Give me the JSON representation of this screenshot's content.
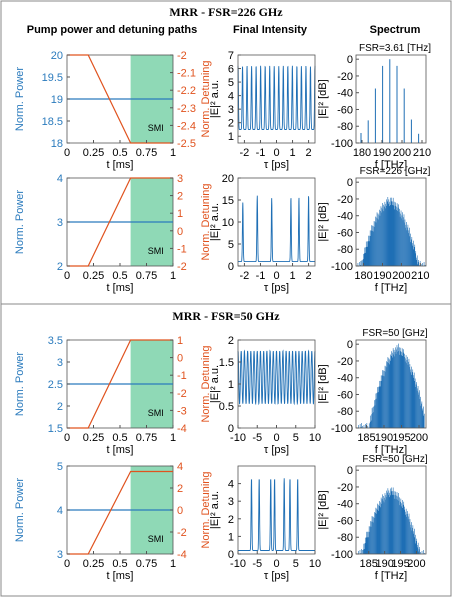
{
  "colors": {
    "power": "#2b7bbd",
    "detuning": "#e0531f",
    "smi_fill": "#8fd9b6",
    "intensity": "#1f6fb5",
    "spectrum": "#1f6fb5",
    "frame": "#555555"
  },
  "section_titles": [
    "MRR - FSR=226 GHz",
    "MRR - FSR=50 GHz"
  ],
  "column_titles": {
    "pump": "Pump power and detuning paths",
    "intensity": "Final Intensity",
    "spectrum": "Spectrum"
  },
  "labels": {
    "power_axis": "Norm. Power",
    "detuning_axis": "Norm. Detuning",
    "time_axis": "t [ms]",
    "intensity_axis": "|E|² a.u.",
    "tau_axis": "τ [ps]",
    "spectrum_axis": "|E|² [dB]",
    "freq_axis": "f [THz]",
    "smi": "SMI"
  },
  "chart_data": [
    {
      "type": "line",
      "panel": "row1-pump",
      "x_ticks": [
        0.25,
        0.5,
        0.75,
        1
      ],
      "xlim": [
        0,
        1
      ],
      "power_ylim": [
        18,
        20
      ],
      "power_ticks": [
        18,
        18.5,
        19,
        19.5,
        20
      ],
      "power_level": 19,
      "detuning_ylim": [
        -2.5,
        -2
      ],
      "detuning_ticks": [
        -2,
        -2.1,
        -2.2,
        -2.3,
        -2.4,
        -2.5
      ],
      "detuning_x": [
        0,
        0.2,
        0.6,
        1
      ],
      "detuning_y": [
        -2,
        -2,
        -2.5,
        -2.5
      ],
      "smi_region": [
        0.6,
        1
      ],
      "detuning_descending": true
    },
    {
      "type": "line",
      "panel": "row2-pump",
      "x_ticks": [
        0.25,
        0.5,
        0.75,
        1
      ],
      "xlim": [
        0,
        1
      ],
      "power_ylim": [
        2,
        4
      ],
      "power_ticks": [
        2,
        3,
        4
      ],
      "power_level": 3,
      "detuning_ylim": [
        -2,
        3
      ],
      "detuning_ticks": [
        3,
        2,
        1,
        0,
        -1,
        -2
      ],
      "detuning_x": [
        0,
        0.2,
        0.6,
        1
      ],
      "detuning_y": [
        -2,
        -2,
        3,
        3
      ],
      "smi_region": [
        0.6,
        1
      ]
    },
    {
      "type": "line",
      "panel": "row3-pump",
      "x_ticks": [
        0.25,
        0.5,
        0.75,
        1
      ],
      "xlim": [
        0,
        1
      ],
      "power_ylim": [
        1.5,
        3.5
      ],
      "power_ticks": [
        1.5,
        2,
        2.5,
        3,
        3.5
      ],
      "power_level": 2.5,
      "detuning_ylim": [
        -4,
        1
      ],
      "detuning_ticks": [
        1,
        0,
        -1,
        -2,
        -3,
        -4
      ],
      "detuning_x": [
        0,
        0.2,
        0.6,
        1
      ],
      "detuning_y": [
        -4,
        -4,
        1,
        1
      ],
      "smi_region": [
        0.6,
        1
      ]
    },
    {
      "type": "line",
      "panel": "row4-pump",
      "x_ticks": [
        0.25,
        0.5,
        0.75,
        1
      ],
      "xlim": [
        0,
        1
      ],
      "power_ylim": [
        3,
        5
      ],
      "power_ticks": [
        3,
        4,
        5
      ],
      "power_level": 4,
      "detuning_ylim": [
        -4,
        4
      ],
      "detuning_ticks": [
        4,
        2,
        0,
        -2,
        -4
      ],
      "detuning_x": [
        0,
        0.2,
        0.6,
        1
      ],
      "detuning_y": [
        -4,
        -4,
        3.5,
        3.5
      ],
      "smi_region": [
        0.6,
        1
      ]
    },
    {
      "type": "line",
      "panel": "row1-intensity",
      "xlim": [
        -2.4,
        2.4
      ],
      "x_ticks": [
        -2,
        -1,
        0,
        1,
        2
      ],
      "ylim": [
        0.5,
        7
      ],
      "y_ticks": [
        1,
        2,
        3,
        4,
        5,
        6,
        7
      ],
      "peaks": 17,
      "baseline": 1.5,
      "peak": 6.2
    },
    {
      "type": "line",
      "panel": "row2-intensity",
      "xlim": [
        -2.4,
        2.4
      ],
      "x_ticks": [
        -2,
        -1,
        0,
        1,
        2
      ],
      "ylim": [
        0,
        20
      ],
      "y_ticks": [
        0,
        5,
        10,
        15,
        20
      ],
      "peak_positions": [
        -2.1,
        -1.2,
        -0.3,
        0.9,
        1.4,
        2.0
      ],
      "peak_heights": [
        14.5,
        16,
        15.5,
        15.5,
        15.5,
        16
      ],
      "baseline": 1
    },
    {
      "type": "line",
      "panel": "row3-intensity",
      "xlim": [
        -10,
        10
      ],
      "x_ticks": [
        -10,
        -5,
        0,
        5,
        10
      ],
      "ylim": [
        0,
        2
      ],
      "y_ticks": [
        0,
        0.5,
        1,
        1.5,
        2
      ],
      "peaks": 24,
      "low": 0.55,
      "high": 1.75
    },
    {
      "type": "line",
      "panel": "row4-intensity",
      "xlim": [
        -10,
        10
      ],
      "x_ticks": [
        -10,
        -5,
        0,
        5,
        10
      ],
      "ylim": [
        0,
        5
      ],
      "y_ticks": [
        0,
        1,
        2,
        3,
        4
      ],
      "peak_positions": [
        -6.5,
        -4.5,
        -1.5,
        -0.5,
        2,
        3.5,
        5.5
      ],
      "peak_height": 4.3,
      "baseline": 0.2
    },
    {
      "type": "bar",
      "panel": "row1-spectrum",
      "annotation": "FSR=3.61 [THz]",
      "xlim": [
        177,
        212
      ],
      "x_ticks": [
        180,
        190,
        200,
        210
      ],
      "ylim": [
        -100,
        5
      ],
      "y_ticks": [
        0,
        -20,
        -40,
        -60,
        -80,
        -100
      ],
      "lines_x": [
        179.5,
        183.1,
        186.7,
        190.3,
        193.9,
        197.5,
        201.1,
        204.7,
        208.3
      ],
      "lines_db": [
        -88,
        -73,
        -35,
        -8,
        0,
        -8,
        -35,
        -72,
        -89
      ]
    },
    {
      "type": "bar",
      "panel": "row2-spectrum",
      "annotation": "FSR=226 [GHz]",
      "xlim": [
        176,
        213
      ],
      "x_ticks": [
        180,
        190,
        200,
        210
      ],
      "ylim": [
        -100,
        5
      ],
      "y_ticks": [
        0,
        -20,
        -40,
        -60,
        -80,
        -100
      ],
      "center": 194,
      "peak_db": -22,
      "floor_db": -100
    },
    {
      "type": "bar",
      "panel": "row3-spectrum",
      "annotation": "FSR=50 [GHz]",
      "xlim": [
        182,
        202
      ],
      "x_ticks": [
        185,
        190,
        195,
        200
      ],
      "ylim": [
        -100,
        5
      ],
      "y_ticks": [
        0,
        -20,
        -40,
        -60,
        -80,
        -100
      ],
      "center": 194,
      "peak_db": -5,
      "floor_db": -100
    },
    {
      "type": "bar",
      "panel": "row4-spectrum",
      "annotation": "FSR=50 [GHz]",
      "xlim": [
        181,
        203
      ],
      "x_ticks": [
        185,
        190,
        195,
        200
      ],
      "ylim": [
        -100,
        5
      ],
      "y_ticks": [
        0,
        -20,
        -40,
        -60,
        -80,
        -100
      ],
      "center": 192,
      "peak_db": -25,
      "floor_db": -100
    }
  ]
}
